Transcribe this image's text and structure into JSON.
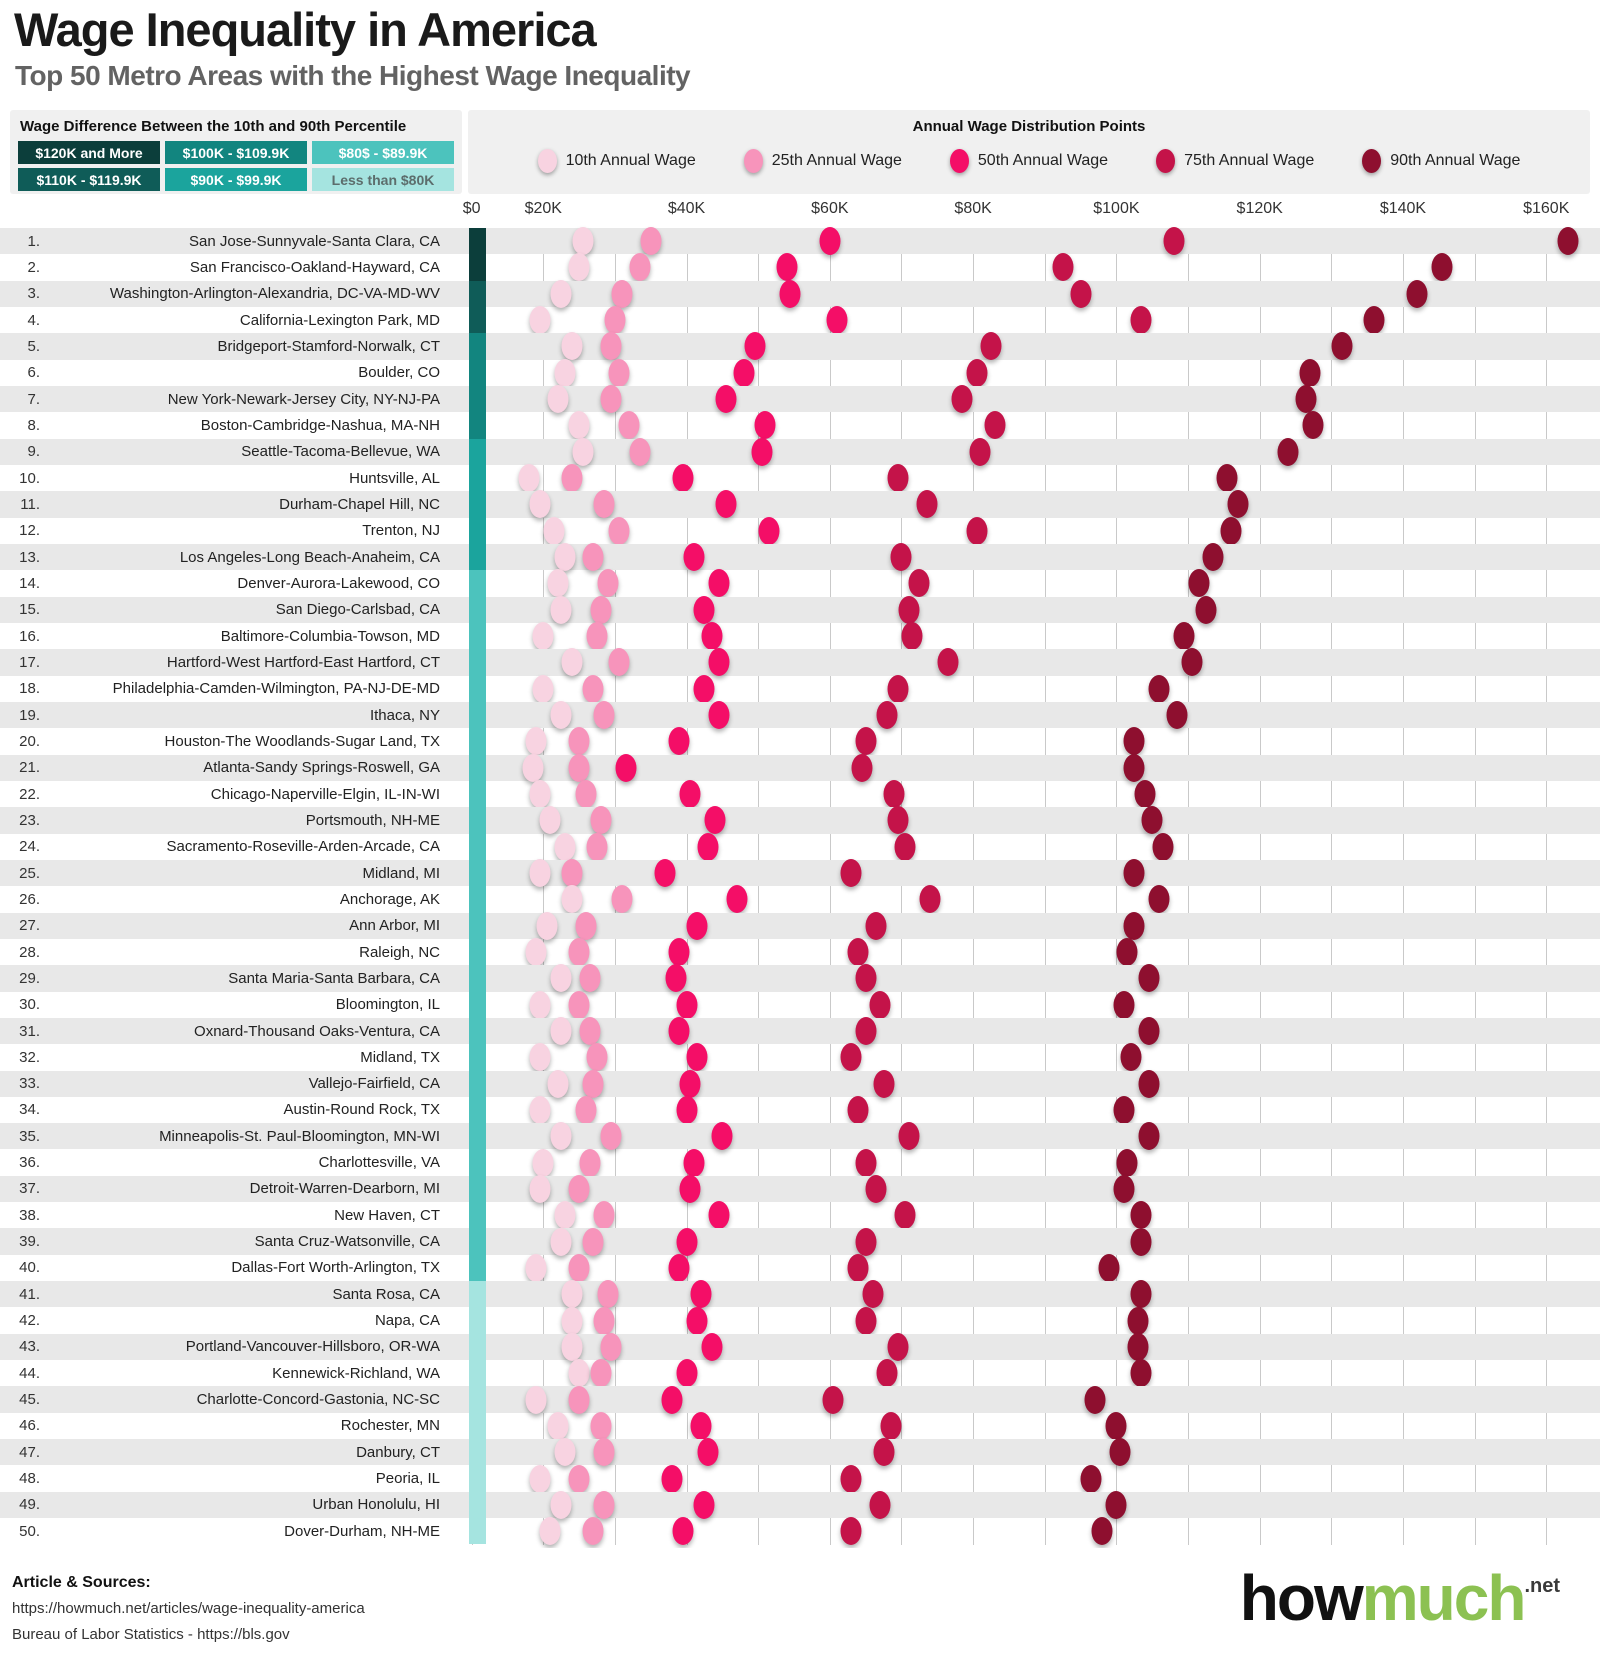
{
  "title": "Wage Inequality in America",
  "subtitle": "Top 50 Metro Areas with the Highest Wage Inequality",
  "diff_legend": {
    "title": "Wage Difference Between the 10th and 90th Percentile",
    "display_grid": [
      {
        "key": "120plus",
        "label": "$120K and More",
        "color": "#0c3e3b",
        "text_color": "#ffffff"
      },
      {
        "key": "100s",
        "label": "$100K - $109.9K",
        "color": "#12857f",
        "text_color": "#ffffff"
      },
      {
        "key": "80s",
        "label": "$80$ - $89.9K",
        "color": "#4cc3bd",
        "text_color": "#ffffff"
      },
      {
        "key": "110s",
        "label": "$110K - $119.9K",
        "color": "#0f5c58",
        "text_color": "#ffffff"
      },
      {
        "key": "90s",
        "label": "$90K - $99.9K",
        "color": "#1ba49d",
        "text_color": "#ffffff"
      },
      {
        "key": "under80",
        "label": "Less than $80K",
        "color": "#a5e4e0",
        "text_color": "#5c6d6c"
      }
    ]
  },
  "points_legend": {
    "title": "Annual Wage Distribution Points",
    "entries": [
      {
        "key": "p10",
        "label": "10th Annual Wage",
        "color": "#f8d3e1"
      },
      {
        "key": "p25",
        "label": "25th Annual Wage",
        "color": "#f794bb"
      },
      {
        "key": "p50",
        "label": "50th Annual Wage",
        "color": "#f40e67"
      },
      {
        "key": "p75",
        "label": "75th Annual Wage",
        "color": "#c41349"
      },
      {
        "key": "p90",
        "label": "90th Annual Wage",
        "color": "#8e0f2f"
      }
    ]
  },
  "chart_data": {
    "type": "scatter",
    "title": "Wage Inequality in America",
    "xlabel": "Annual Wage",
    "x_ticks": [
      {
        "label": "$0",
        "pos_k": 10
      },
      {
        "label": "$20K",
        "pos_k": 20
      },
      {
        "label": "$40K",
        "pos_k": 40
      },
      {
        "label": "$60K",
        "pos_k": 60
      },
      {
        "label": "$80K",
        "pos_k": 80
      },
      {
        "label": "$100K",
        "pos_k": 100
      },
      {
        "label": "$120K",
        "pos_k": 120
      },
      {
        "label": "$140K",
        "pos_k": 140
      },
      {
        "label": "$160K",
        "pos_k": 160
      }
    ],
    "note_on_ticks": "the $0 label is printed beside the color-bar column (at the $10K position) in the original graphic",
    "gridline_step_k": 10,
    "gridline_min_k": 10,
    "gridline_max_k": 160,
    "axis_range_k": [
      0,
      166
    ],
    "units": "thousand US dollars per year",
    "series_labels": [
      "10th percentile",
      "25th percentile",
      "50th percentile",
      "75th percentile",
      "90th percentile"
    ],
    "rows": [
      {
        "rank": 1,
        "metro": "San Jose-Sunnyvale-Santa Clara, CA",
        "diff_category": "120plus",
        "p10": 25.5,
        "p25": 35.0,
        "p50": 60.0,
        "p75": 108.0,
        "p90": 163.0
      },
      {
        "rank": 2,
        "metro": "San Francisco-Oakland-Hayward, CA",
        "diff_category": "120plus",
        "p10": 25.0,
        "p25": 33.5,
        "p50": 54.0,
        "p75": 92.5,
        "p90": 145.5
      },
      {
        "rank": 3,
        "metro": "Washington-Arlington-Alexandria, DC-VA-MD-WV",
        "diff_category": "110s",
        "p10": 22.5,
        "p25": 31.0,
        "p50": 54.5,
        "p75": 95.0,
        "p90": 142.0
      },
      {
        "rank": 4,
        "metro": "California-Lexington Park, MD",
        "diff_category": "110s",
        "p10": 19.5,
        "p25": 30.0,
        "p50": 61.0,
        "p75": 103.5,
        "p90": 136.0
      },
      {
        "rank": 5,
        "metro": "Bridgeport-Stamford-Norwalk, CT",
        "diff_category": "100s",
        "p10": 24.0,
        "p25": 29.5,
        "p50": 49.5,
        "p75": 82.5,
        "p90": 131.5
      },
      {
        "rank": 6,
        "metro": "Boulder, CO",
        "diff_category": "100s",
        "p10": 23.0,
        "p25": 30.5,
        "p50": 48.0,
        "p75": 80.5,
        "p90": 127.0
      },
      {
        "rank": 7,
        "metro": "New York-Newark-Jersey City, NY-NJ-PA",
        "diff_category": "100s",
        "p10": 22.0,
        "p25": 29.5,
        "p50": 45.5,
        "p75": 78.5,
        "p90": 126.5
      },
      {
        "rank": 8,
        "metro": "Boston-Cambridge-Nashua, MA-NH",
        "diff_category": "100s",
        "p10": 25.0,
        "p25": 32.0,
        "p50": 51.0,
        "p75": 83.0,
        "p90": 127.5
      },
      {
        "rank": 9,
        "metro": "Seattle-Tacoma-Bellevue, WA",
        "diff_category": "90s",
        "p10": 25.5,
        "p25": 33.5,
        "p50": 50.5,
        "p75": 81.0,
        "p90": 124.0
      },
      {
        "rank": 10,
        "metro": "Huntsville, AL",
        "diff_category": "90s",
        "p10": 18.0,
        "p25": 24.0,
        "p50": 39.5,
        "p75": 69.5,
        "p90": 115.5
      },
      {
        "rank": 11,
        "metro": "Durham-Chapel Hill, NC",
        "diff_category": "90s",
        "p10": 19.5,
        "p25": 28.5,
        "p50": 45.5,
        "p75": 73.5,
        "p90": 117.0
      },
      {
        "rank": 12,
        "metro": "Trenton, NJ",
        "diff_category": "90s",
        "p10": 21.5,
        "p25": 30.5,
        "p50": 51.5,
        "p75": 80.5,
        "p90": 116.0
      },
      {
        "rank": 13,
        "metro": "Los Angeles-Long Beach-Anaheim, CA",
        "diff_category": "90s",
        "p10": 23.0,
        "p25": 27.0,
        "p50": 41.0,
        "p75": 70.0,
        "p90": 113.5
      },
      {
        "rank": 14,
        "metro": "Denver-Aurora-Lakewood, CO",
        "diff_category": "80s",
        "p10": 22.0,
        "p25": 29.0,
        "p50": 44.5,
        "p75": 72.5,
        "p90": 111.5
      },
      {
        "rank": 15,
        "metro": "San Diego-Carlsbad, CA",
        "diff_category": "80s",
        "p10": 22.5,
        "p25": 28.0,
        "p50": 42.5,
        "p75": 71.0,
        "p90": 112.5
      },
      {
        "rank": 16,
        "metro": "Baltimore-Columbia-Towson, MD",
        "diff_category": "80s",
        "p10": 20.0,
        "p25": 27.5,
        "p50": 43.5,
        "p75": 71.5,
        "p90": 109.5
      },
      {
        "rank": 17,
        "metro": "Hartford-West Hartford-East Hartford, CT",
        "diff_category": "80s",
        "p10": 24.0,
        "p25": 30.5,
        "p50": 44.5,
        "p75": 76.5,
        "p90": 110.5
      },
      {
        "rank": 18,
        "metro": "Philadelphia-Camden-Wilmington, PA-NJ-DE-MD",
        "diff_category": "80s",
        "p10": 20.0,
        "p25": 27.0,
        "p50": 42.5,
        "p75": 69.5,
        "p90": 106.0
      },
      {
        "rank": 19,
        "metro": "Ithaca, NY",
        "diff_category": "80s",
        "p10": 22.5,
        "p25": 28.5,
        "p50": 44.5,
        "p75": 68.0,
        "p90": 108.5
      },
      {
        "rank": 20,
        "metro": "Houston-The Woodlands-Sugar Land, TX",
        "diff_category": "80s",
        "p10": 19.0,
        "p25": 25.0,
        "p50": 39.0,
        "p75": 65.0,
        "p90": 102.5
      },
      {
        "rank": 21,
        "metro": "Atlanta-Sandy Springs-Roswell, GA",
        "diff_category": "80s",
        "p10": 18.5,
        "p25": 25.0,
        "p50": 31.5,
        "p75": 64.5,
        "p90": 102.5
      },
      {
        "rank": 22,
        "metro": "Chicago-Naperville-Elgin, IL-IN-WI",
        "diff_category": "80s",
        "p10": 19.5,
        "p25": 26.0,
        "p50": 40.5,
        "p75": 69.0,
        "p90": 104.0
      },
      {
        "rank": 23,
        "metro": "Portsmouth, NH-ME",
        "diff_category": "80s",
        "p10": 21.0,
        "p25": 28.0,
        "p50": 44.0,
        "p75": 69.5,
        "p90": 105.0
      },
      {
        "rank": 24,
        "metro": "Sacramento-Roseville-Arden-Arcade, CA",
        "diff_category": "80s",
        "p10": 23.0,
        "p25": 27.5,
        "p50": 43.0,
        "p75": 70.5,
        "p90": 106.5
      },
      {
        "rank": 25,
        "metro": "Midland, MI",
        "diff_category": "80s",
        "p10": 19.5,
        "p25": 24.0,
        "p50": 37.0,
        "p75": 63.0,
        "p90": 102.5
      },
      {
        "rank": 26,
        "metro": "Anchorage, AK",
        "diff_category": "80s",
        "p10": 24.0,
        "p25": 31.0,
        "p50": 47.0,
        "p75": 74.0,
        "p90": 106.0
      },
      {
        "rank": 27,
        "metro": "Ann Arbor, MI",
        "diff_category": "80s",
        "p10": 20.5,
        "p25": 26.0,
        "p50": 41.5,
        "p75": 66.5,
        "p90": 102.5
      },
      {
        "rank": 28,
        "metro": "Raleigh, NC",
        "diff_category": "80s",
        "p10": 19.0,
        "p25": 25.0,
        "p50": 39.0,
        "p75": 64.0,
        "p90": 101.5
      },
      {
        "rank": 29,
        "metro": "Santa Maria-Santa Barbara, CA",
        "diff_category": "80s",
        "p10": 22.5,
        "p25": 26.5,
        "p50": 38.5,
        "p75": 65.0,
        "p90": 104.5
      },
      {
        "rank": 30,
        "metro": "Bloomington, IL",
        "diff_category": "80s",
        "p10": 19.5,
        "p25": 25.0,
        "p50": 40.0,
        "p75": 67.0,
        "p90": 101.0
      },
      {
        "rank": 31,
        "metro": "Oxnard-Thousand Oaks-Ventura, CA",
        "diff_category": "80s",
        "p10": 22.5,
        "p25": 26.5,
        "p50": 39.0,
        "p75": 65.0,
        "p90": 104.5
      },
      {
        "rank": 32,
        "metro": "Midland, TX",
        "diff_category": "80s",
        "p10": 19.5,
        "p25": 27.5,
        "p50": 41.5,
        "p75": 63.0,
        "p90": 102.0
      },
      {
        "rank": 33,
        "metro": "Vallejo-Fairfield, CA",
        "diff_category": "80s",
        "p10": 22.0,
        "p25": 27.0,
        "p50": 40.5,
        "p75": 67.5,
        "p90": 104.5
      },
      {
        "rank": 34,
        "metro": "Austin-Round Rock, TX",
        "diff_category": "80s",
        "p10": 19.5,
        "p25": 26.0,
        "p50": 40.0,
        "p75": 64.0,
        "p90": 101.0
      },
      {
        "rank": 35,
        "metro": "Minneapolis-St. Paul-Bloomington, MN-WI",
        "diff_category": "80s",
        "p10": 22.5,
        "p25": 29.5,
        "p50": 45.0,
        "p75": 71.0,
        "p90": 104.5
      },
      {
        "rank": 36,
        "metro": "Charlottesville, VA",
        "diff_category": "80s",
        "p10": 20.0,
        "p25": 26.5,
        "p50": 41.0,
        "p75": 65.0,
        "p90": 101.5
      },
      {
        "rank": 37,
        "metro": "Detroit-Warren-Dearborn, MI",
        "diff_category": "80s",
        "p10": 19.5,
        "p25": 25.0,
        "p50": 40.5,
        "p75": 66.5,
        "p90": 101.0
      },
      {
        "rank": 38,
        "metro": "New Haven, CT",
        "diff_category": "80s",
        "p10": 23.0,
        "p25": 28.5,
        "p50": 44.5,
        "p75": 70.5,
        "p90": 103.5
      },
      {
        "rank": 39,
        "metro": "Santa Cruz-Watsonville, CA",
        "diff_category": "80s",
        "p10": 22.5,
        "p25": 27.0,
        "p50": 40.0,
        "p75": 65.0,
        "p90": 103.5
      },
      {
        "rank": 40,
        "metro": "Dallas-Fort Worth-Arlington, TX",
        "diff_category": "80s",
        "p10": 19.0,
        "p25": 25.0,
        "p50": 39.0,
        "p75": 64.0,
        "p90": 99.0
      },
      {
        "rank": 41,
        "metro": "Santa Rosa, CA",
        "diff_category": "under80",
        "p10": 24.0,
        "p25": 29.0,
        "p50": 42.0,
        "p75": 66.0,
        "p90": 103.5
      },
      {
        "rank": 42,
        "metro": "Napa, CA",
        "diff_category": "under80",
        "p10": 24.0,
        "p25": 28.5,
        "p50": 41.5,
        "p75": 65.0,
        "p90": 103.0
      },
      {
        "rank": 43,
        "metro": "Portland-Vancouver-Hillsboro, OR-WA",
        "diff_category": "under80",
        "p10": 24.0,
        "p25": 29.5,
        "p50": 43.5,
        "p75": 69.5,
        "p90": 103.0
      },
      {
        "rank": 44,
        "metro": "Kennewick-Richland, WA",
        "diff_category": "under80",
        "p10": 25.0,
        "p25": 28.0,
        "p50": 40.0,
        "p75": 68.0,
        "p90": 103.5
      },
      {
        "rank": 45,
        "metro": "Charlotte-Concord-Gastonia, NC-SC",
        "diff_category": "under80",
        "p10": 19.0,
        "p25": 25.0,
        "p50": 38.0,
        "p75": 60.5,
        "p90": 97.0
      },
      {
        "rank": 46,
        "metro": "Rochester, MN",
        "diff_category": "under80",
        "p10": 22.0,
        "p25": 28.0,
        "p50": 42.0,
        "p75": 68.5,
        "p90": 100.0
      },
      {
        "rank": 47,
        "metro": "Danbury, CT",
        "diff_category": "under80",
        "p10": 23.0,
        "p25": 28.5,
        "p50": 43.0,
        "p75": 67.5,
        "p90": 100.5
      },
      {
        "rank": 48,
        "metro": "Peoria, IL",
        "diff_category": "under80",
        "p10": 19.5,
        "p25": 25.0,
        "p50": 38.0,
        "p75": 63.0,
        "p90": 96.5
      },
      {
        "rank": 49,
        "metro": "Urban Honolulu, HI",
        "diff_category": "under80",
        "p10": 22.5,
        "p25": 28.5,
        "p50": 42.5,
        "p75": 67.0,
        "p90": 100.0
      },
      {
        "rank": 50,
        "metro": "Dover-Durham, NH-ME",
        "diff_category": "under80",
        "p10": 21.0,
        "p25": 27.0,
        "p50": 39.5,
        "p75": 63.0,
        "p90": 98.0
      }
    ]
  },
  "footer": {
    "sources_title": "Article & Sources:",
    "source_line1": "https://howmuch.net/articles/wage-inequality-america",
    "source_line2": "Bureau of Labor Statistics - https://bls.gov",
    "logo_part1": "how",
    "logo_part2": "much",
    "logo_suffix": ".net"
  }
}
